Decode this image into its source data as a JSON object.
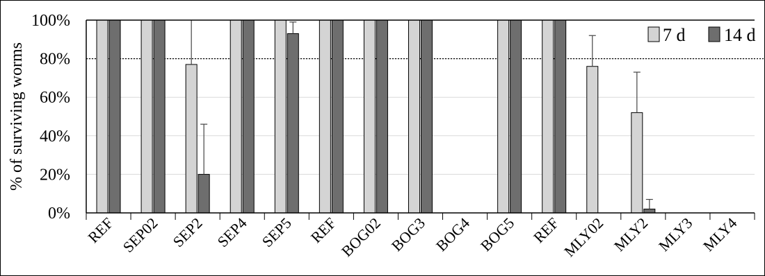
{
  "chart_data": {
    "type": "bar",
    "categories": [
      "REF",
      "SEP02",
      "SEP2",
      "SEP4",
      "SEP5",
      "REF",
      "BOG02",
      "BOG3",
      "BOG4",
      "BOG5",
      "REF",
      "MLY02",
      "MLY2",
      "MLY3",
      "MLY4"
    ],
    "series": [
      {
        "name": "7 d",
        "color": "#d4d4d4",
        "values": [
          100,
          100,
          77,
          100,
          100,
          100,
          100,
          100,
          0,
          100,
          100,
          76,
          52,
          0,
          0
        ],
        "errors": [
          0,
          0,
          23,
          0,
          0,
          0,
          0,
          0,
          0,
          0,
          0,
          16,
          21,
          0,
          0
        ]
      },
      {
        "name": "14 d",
        "color": "#6e6e6e",
        "values": [
          100,
          100,
          20,
          100,
          93,
          100,
          100,
          100,
          0,
          100,
          100,
          0,
          2,
          0,
          0
        ],
        "errors": [
          0,
          0,
          26,
          0,
          6,
          0,
          0,
          0,
          0,
          0,
          0,
          0,
          5,
          0,
          0
        ]
      }
    ],
    "ylabel": "% of surviving worms",
    "ylim": [
      0,
      100
    ],
    "yticks": [
      "0%",
      "20%",
      "40%",
      "60%",
      "80%",
      "100%"
    ],
    "reference_line": {
      "value": 80,
      "style": "dotted"
    },
    "grid": true,
    "legend": "top-right"
  }
}
